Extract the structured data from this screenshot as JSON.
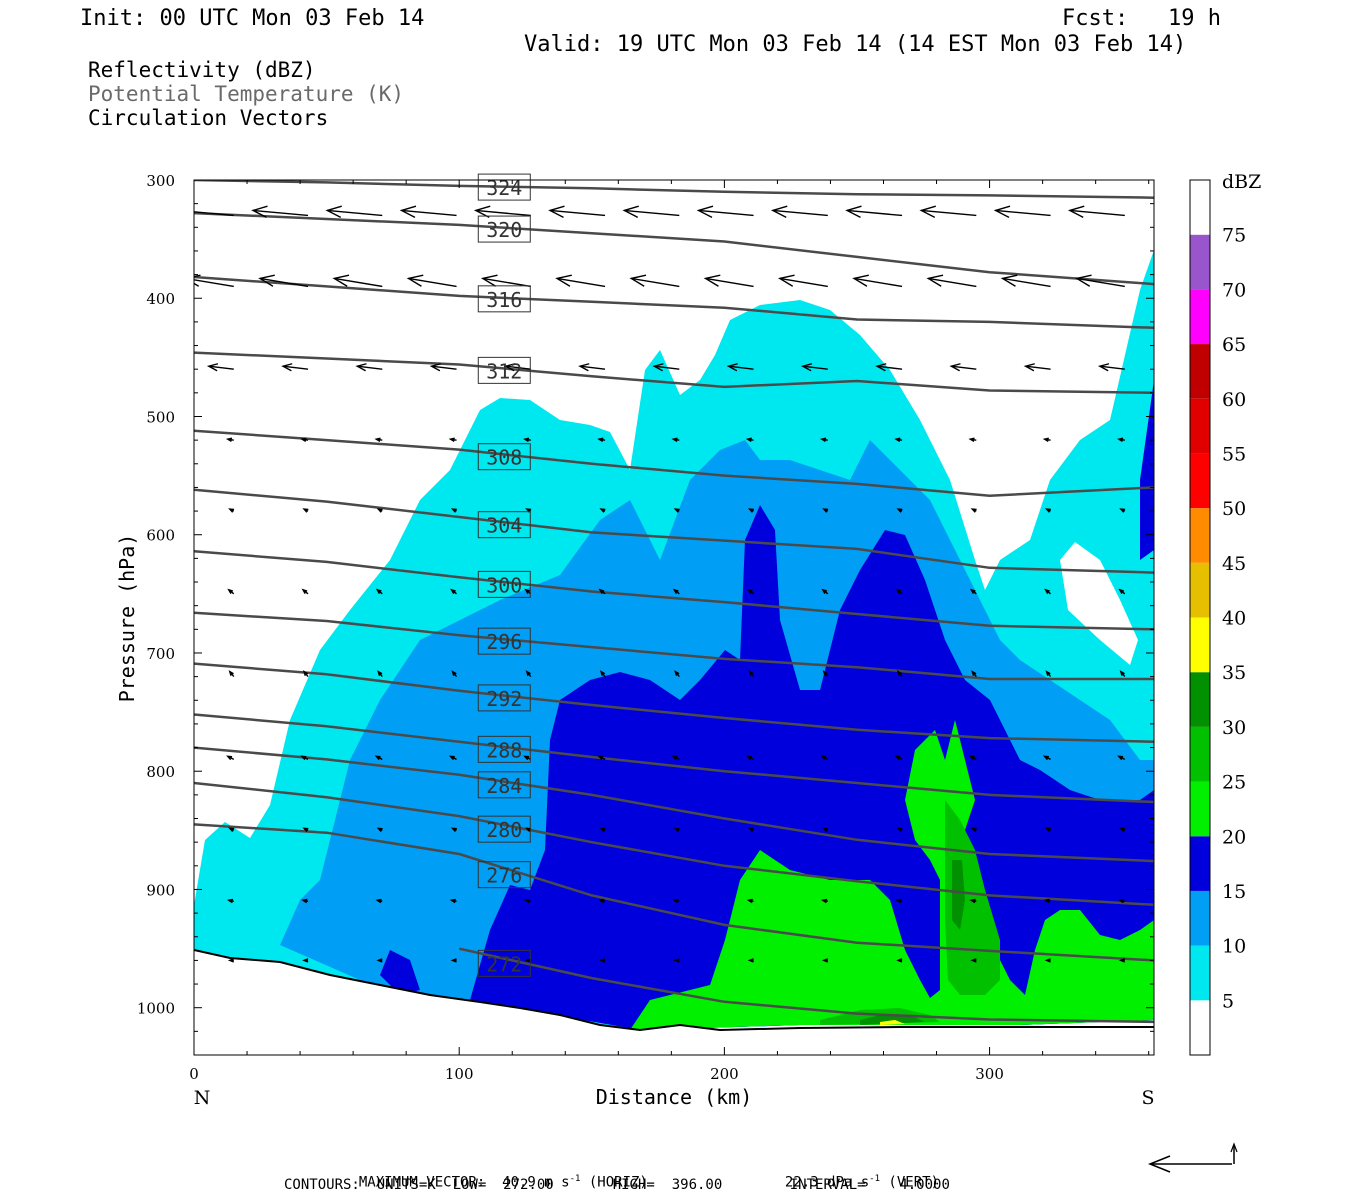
{
  "header": {
    "init": "Init: 00 UTC Mon 03 Feb 14",
    "fcst": "Fcst:   19 h",
    "valid": "Valid: 19 UTC Mon 03 Feb 14 (14 EST Mon 03 Feb 14)"
  },
  "legend": {
    "field1": "Reflectivity (dBZ)",
    "field2": "Potential Temperature (K)",
    "field3": "Circulation Vectors"
  },
  "footer": {
    "max_vector": "MAXIMUM VECTOR:  40.9 m s",
    "horiz": " (HORIZ)",
    "vert_val": "22.3 dPa s",
    "vert": " (VERT)",
    "exp": "-1",
    "contours": "CONTOURS:  UNITS=K  LOW=  272.00       HIGH=  396.00        INTERVAL=    4.0000"
  },
  "colors": {
    "theta_line": "#4a4a4a",
    "vector": "#000000",
    "dbz_5": "#00e8ef",
    "dbz_10": "#009ff5",
    "dbz_15": "#0000dc",
    "dbz_20": "#00f000",
    "dbz_25": "#00c000",
    "dbz_30": "#009000"
  },
  "chart_data": {
    "type": "heatmap",
    "title": "Reflectivity (dBZ)",
    "xlabel": "Distance (km)",
    "ylabel": "Pressure (hPa)",
    "xlim": [
      0,
      362
    ],
    "ylim": [
      1040,
      300
    ],
    "x_ticks": [
      0,
      100,
      200,
      300
    ],
    "y_ticks": [
      300,
      400,
      500,
      600,
      700,
      800,
      900,
      1000
    ],
    "x_end_labels": {
      "left": "N",
      "right": "S"
    },
    "colorbar": {
      "unit": "dBZ",
      "labels": [
        5,
        10,
        15,
        20,
        25,
        30,
        35,
        40,
        45,
        50,
        55,
        60,
        65,
        70,
        75
      ],
      "colors": [
        "#ffffff",
        "#00e8ef",
        "#009ff5",
        "#0000dc",
        "#00f000",
        "#00c000",
        "#009000",
        "#ffff00",
        "#e6c000",
        "#ff8c00",
        "#ff0000",
        "#e00000",
        "#c00000",
        "#ff00ff",
        "#9955cc",
        "#ffffff"
      ]
    },
    "theta_contours": {
      "units": "K",
      "low": 272,
      "high": 396,
      "interval": 4,
      "lines": [
        {
          "value": 324,
          "p": [
            300,
            302,
            305,
            307,
            310,
            312,
            313,
            315
          ]
        },
        {
          "value": 320,
          "p": [
            328,
            333,
            338,
            345,
            352,
            365,
            378,
            388
          ]
        },
        {
          "value": 316,
          "p": [
            382,
            390,
            398,
            403,
            408,
            418,
            420,
            425
          ]
        },
        {
          "value": 312,
          "p": [
            446,
            451,
            456,
            466,
            475,
            470,
            478,
            480
          ]
        },
        {
          "value": 308,
          "p": [
            512,
            520,
            528,
            540,
            550,
            557,
            567,
            560
          ]
        },
        {
          "value": 304,
          "p": [
            562,
            572,
            585,
            598,
            605,
            612,
            628,
            632
          ]
        },
        {
          "value": 300,
          "p": [
            614,
            623,
            636,
            648,
            657,
            667,
            677,
            680
          ]
        },
        {
          "value": 296,
          "p": [
            666,
            673,
            685,
            695,
            705,
            712,
            722,
            722
          ]
        },
        {
          "value": 292,
          "p": [
            709,
            718,
            732,
            744,
            755,
            765,
            772,
            775
          ]
        },
        {
          "value": 288,
          "p": [
            752,
            762,
            775,
            788,
            800,
            810,
            820,
            826
          ]
        },
        {
          "value": 284,
          "p": [
            780,
            790,
            803,
            820,
            840,
            858,
            870,
            876
          ]
        },
        {
          "value": 280,
          "p": [
            810,
            822,
            838,
            860,
            880,
            893,
            905,
            913
          ]
        },
        {
          "value": 276,
          "p": [
            845,
            852,
            870,
            905,
            930,
            945,
            952,
            960
          ]
        },
        {
          "value": 272,
          "p": [
            null,
            null,
            950,
            975,
            995,
            1005,
            1010,
            1012
          ]
        }
      ],
      "x": [
        0,
        50,
        100,
        150,
        200,
        250,
        300,
        362
      ]
    },
    "vectors_note": "Circulation vectors: predominantly northward (leftward) flow aloft, weak near surface"
  }
}
